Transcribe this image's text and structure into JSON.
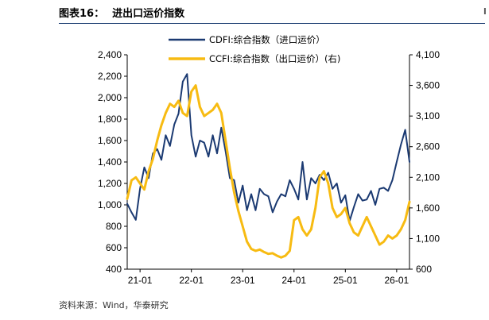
{
  "header": {
    "figure_label": "图表16：",
    "title": "进出口运价指数"
  },
  "footer": {
    "source": "资料来源：Wind，华泰研究"
  },
  "colors": {
    "cdfi": "#1b3a72",
    "ccfi": "#f7bb12",
    "rule": "#1d3f73"
  },
  "chart_data": {
    "type": "line",
    "title": "",
    "legend_position": "top-center",
    "grid": false,
    "x_ticks": [
      "21-01",
      "22-01",
      "23-01",
      "24-01",
      "25-01",
      "26-01"
    ],
    "x_range": [
      "2020-10",
      "2026-04"
    ],
    "y_left": {
      "ticks": [
        "2,400",
        "2,200",
        "2,000",
        "1,800",
        "1,600",
        "1,400",
        "1,200",
        "1,000",
        "800",
        "600",
        "400"
      ],
      "range": [
        400,
        2400
      ]
    },
    "y_right": {
      "ticks": [
        "4,100",
        "3,600",
        "3,100",
        "2,600",
        "2,100",
        "1,600",
        "1,100",
        "600"
      ],
      "range": [
        600,
        4100
      ]
    },
    "series": [
      {
        "name": "CDFI:综合指数（进口运价）",
        "axis": "left",
        "points": [
          [
            "2020-10",
            1010
          ],
          [
            "2020-11",
            930
          ],
          [
            "2020-12",
            860
          ],
          [
            "2021-01",
            1150
          ],
          [
            "2021-02",
            1350
          ],
          [
            "2021-03",
            1250
          ],
          [
            "2021-04",
            1480
          ],
          [
            "2021-05",
            1520
          ],
          [
            "2021-06",
            1420
          ],
          [
            "2021-07",
            1650
          ],
          [
            "2021-08",
            1550
          ],
          [
            "2021-09",
            1750
          ],
          [
            "2021-10",
            1850
          ],
          [
            "2021-11",
            2150
          ],
          [
            "2021-12",
            2220
          ],
          [
            "2022-01",
            1650
          ],
          [
            "2022-02",
            1450
          ],
          [
            "2022-03",
            1600
          ],
          [
            "2022-04",
            1580
          ],
          [
            "2022-05",
            1450
          ],
          [
            "2022-06",
            1650
          ],
          [
            "2022-07",
            1480
          ],
          [
            "2022-08",
            1720
          ],
          [
            "2022-09",
            1500
          ],
          [
            "2022-10",
            1250
          ],
          [
            "2022-11",
            1230
          ],
          [
            "2022-12",
            1020
          ],
          [
            "2023-01",
            1180
          ],
          [
            "2023-02",
            950
          ],
          [
            "2023-03",
            1100
          ],
          [
            "2023-04",
            950
          ],
          [
            "2023-05",
            1150
          ],
          [
            "2023-06",
            1100
          ],
          [
            "2023-07",
            1080
          ],
          [
            "2023-08",
            930
          ],
          [
            "2023-09",
            1030
          ],
          [
            "2023-10",
            1100
          ],
          [
            "2023-11",
            1080
          ],
          [
            "2023-12",
            1230
          ],
          [
            "2024-01",
            1150
          ],
          [
            "2024-02",
            1050
          ],
          [
            "2024-03",
            1400
          ],
          [
            "2024-04",
            1050
          ],
          [
            "2024-05",
            1250
          ],
          [
            "2024-06",
            1200
          ],
          [
            "2024-07",
            1280
          ],
          [
            "2024-08",
            1230
          ],
          [
            "2024-09",
            1300
          ],
          [
            "2024-10",
            1150
          ],
          [
            "2024-11",
            1200
          ],
          [
            "2024-12",
            1020
          ],
          [
            "2025-01",
            1090
          ],
          [
            "2025-02",
            850
          ],
          [
            "2025-03",
            980
          ],
          [
            "2025-04",
            1100
          ],
          [
            "2025-05",
            1040
          ],
          [
            "2025-06",
            1050
          ],
          [
            "2025-07",
            1130
          ],
          [
            "2025-08",
            1000
          ],
          [
            "2025-09",
            1150
          ],
          [
            "2025-10",
            1160
          ],
          [
            "2025-11",
            1130
          ],
          [
            "2025-12",
            1230
          ],
          [
            "2026-01",
            1400
          ],
          [
            "2026-02",
            1560
          ],
          [
            "2026-03",
            1700
          ],
          [
            "2026-04",
            1400
          ]
        ]
      },
      {
        "name": "CCFI:综合指数（出口运价）(右)",
        "axis": "right",
        "points": [
          [
            "2020-10",
            1750
          ],
          [
            "2020-11",
            2050
          ],
          [
            "2020-12",
            2100
          ],
          [
            "2021-01",
            2000
          ],
          [
            "2021-02",
            1900
          ],
          [
            "2021-03",
            2200
          ],
          [
            "2021-04",
            2400
          ],
          [
            "2021-05",
            2700
          ],
          [
            "2021-06",
            2950
          ],
          [
            "2021-07",
            3150
          ],
          [
            "2021-08",
            3300
          ],
          [
            "2021-09",
            3250
          ],
          [
            "2021-10",
            3350
          ],
          [
            "2021-11",
            3150
          ],
          [
            "2021-12",
            3100
          ],
          [
            "2022-01",
            3500
          ],
          [
            "2022-02",
            3600
          ],
          [
            "2022-03",
            3250
          ],
          [
            "2022-04",
            3100
          ],
          [
            "2022-05",
            3150
          ],
          [
            "2022-06",
            3200
          ],
          [
            "2022-07",
            3300
          ],
          [
            "2022-08",
            3150
          ],
          [
            "2022-09",
            2700
          ],
          [
            "2022-10",
            2250
          ],
          [
            "2022-11",
            1850
          ],
          [
            "2022-12",
            1550
          ],
          [
            "2023-01",
            1300
          ],
          [
            "2023-02",
            1050
          ],
          [
            "2023-03",
            930
          ],
          [
            "2023-04",
            900
          ],
          [
            "2023-05",
            920
          ],
          [
            "2023-06",
            880
          ],
          [
            "2023-07",
            850
          ],
          [
            "2023-08",
            860
          ],
          [
            "2023-09",
            820
          ],
          [
            "2023-10",
            790
          ],
          [
            "2023-11",
            820
          ],
          [
            "2023-12",
            900
          ],
          [
            "2024-01",
            1400
          ],
          [
            "2024-02",
            1450
          ],
          [
            "2024-03",
            1250
          ],
          [
            "2024-04",
            1150
          ],
          [
            "2024-05",
            1250
          ],
          [
            "2024-06",
            1600
          ],
          [
            "2024-07",
            2100
          ],
          [
            "2024-08",
            2200
          ],
          [
            "2024-09",
            2000
          ],
          [
            "2024-10",
            1600
          ],
          [
            "2024-11",
            1450
          ],
          [
            "2024-12",
            1500
          ],
          [
            "2025-01",
            1600
          ],
          [
            "2025-02",
            1350
          ],
          [
            "2025-03",
            1200
          ],
          [
            "2025-04",
            1150
          ],
          [
            "2025-05",
            1300
          ],
          [
            "2025-06",
            1450
          ],
          [
            "2025-07",
            1300
          ],
          [
            "2025-08",
            1150
          ],
          [
            "2025-09",
            1000
          ],
          [
            "2025-10",
            1050
          ],
          [
            "2025-11",
            1150
          ],
          [
            "2025-12",
            1100
          ],
          [
            "2026-01",
            1150
          ],
          [
            "2026-02",
            1250
          ],
          [
            "2026-03",
            1400
          ],
          [
            "2026-04",
            1700
          ]
        ]
      }
    ]
  }
}
